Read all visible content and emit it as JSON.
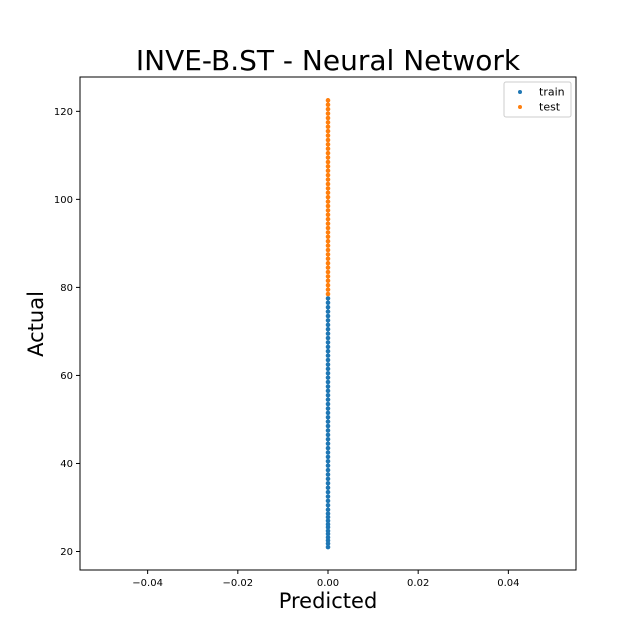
{
  "chart_data": {
    "type": "scatter",
    "title": "INVE-B.ST - Neural Network",
    "xlabel": "Predicted",
    "ylabel": "Actual",
    "xlim": [
      -0.055,
      0.055
    ],
    "ylim": [
      15.8,
      127.8
    ],
    "x_ticks": [
      -0.04,
      -0.02,
      0.0,
      0.02,
      0.04
    ],
    "x_tick_labels": [
      "−0.04",
      "−0.02",
      "0.00",
      "0.02",
      "0.04"
    ],
    "y_ticks": [
      20,
      40,
      60,
      80,
      100,
      120
    ],
    "y_tick_labels": [
      "20",
      "40",
      "60",
      "80",
      "100",
      "120"
    ],
    "grid": false,
    "legend_position": "top-right",
    "series": [
      {
        "name": "train",
        "color": "#1f77b4",
        "x": [
          0,
          0,
          0,
          0,
          0,
          0,
          0,
          0,
          0,
          0,
          0,
          0,
          0,
          0,
          0,
          0,
          0,
          0,
          0,
          0,
          0,
          0,
          0,
          0,
          0,
          0,
          0,
          0,
          0,
          0,
          0,
          0,
          0,
          0,
          0,
          0,
          0,
          0,
          0,
          0,
          0,
          0,
          0,
          0,
          0,
          0,
          0,
          0,
          0,
          0,
          0,
          0,
          0,
          0,
          0,
          0,
          0,
          0,
          0,
          0
        ],
        "y": [
          21.0,
          21.8,
          22.5,
          23.2,
          24.0,
          24.7,
          25.5,
          26.2,
          27.0,
          27.8,
          28.6,
          29.5,
          30.5,
          31.5,
          32.5,
          33.5,
          34.5,
          35.5,
          36.5,
          37.5,
          38.5,
          39.5,
          40.5,
          41.5,
          42.5,
          43.5,
          44.5,
          45.5,
          46.5,
          47.5,
          48.5,
          49.5,
          50.5,
          51.5,
          52.5,
          53.5,
          54.5,
          55.5,
          56.5,
          57.5,
          58.5,
          59.5,
          60.5,
          61.5,
          62.5,
          63.5,
          64.5,
          65.5,
          66.5,
          67.5,
          68.5,
          69.5,
          70.5,
          71.5,
          72.5,
          73.5,
          74.5,
          75.5,
          76.5,
          77.5
        ]
      },
      {
        "name": "test",
        "color": "#ff7f0e",
        "x": [
          0,
          0,
          0,
          0,
          0,
          0,
          0,
          0,
          0,
          0,
          0,
          0,
          0,
          0,
          0,
          0,
          0,
          0,
          0,
          0,
          0,
          0,
          0,
          0,
          0,
          0,
          0,
          0,
          0,
          0,
          0,
          0,
          0,
          0,
          0,
          0,
          0,
          0,
          0,
          0,
          0,
          0,
          0,
          0,
          0
        ],
        "y": [
          78.5,
          79.5,
          80.5,
          81.5,
          82.5,
          83.5,
          84.5,
          85.5,
          86.5,
          87.5,
          88.5,
          89.5,
          90.5,
          91.5,
          92.5,
          93.5,
          94.5,
          95.5,
          96.5,
          97.5,
          98.5,
          99.5,
          100.5,
          101.5,
          102.5,
          103.5,
          104.5,
          105.5,
          106.5,
          107.5,
          108.5,
          109.5,
          110.5,
          111.5,
          112.5,
          113.5,
          114.5,
          115.5,
          116.5,
          117.5,
          118.5,
          119.5,
          120.5,
          121.5,
          122.5
        ]
      }
    ]
  }
}
